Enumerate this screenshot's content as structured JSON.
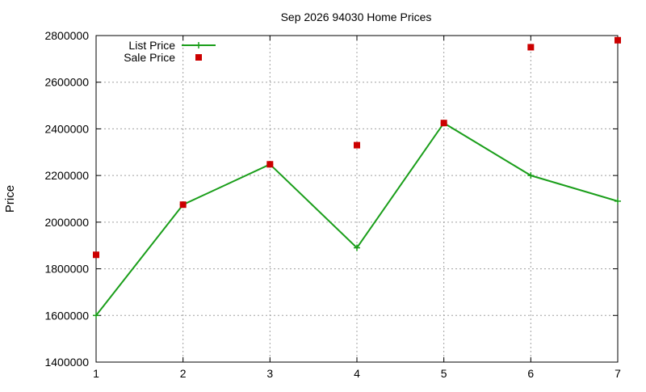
{
  "chart_data": {
    "type": "line",
    "title": "Sep 2026 94030 Home Prices",
    "xlabel": "",
    "ylabel": "Price",
    "xlim": [
      1,
      7
    ],
    "ylim": [
      1400000,
      2800000
    ],
    "x_ticks": [
      "1",
      "2",
      "3",
      "4",
      "5",
      "6",
      "7"
    ],
    "y_ticks": [
      "1400000",
      "1600000",
      "1800000",
      "2000000",
      "2200000",
      "2400000",
      "2600000",
      "2800000"
    ],
    "grid": true,
    "legend_position": "top-left",
    "series": [
      {
        "name": "List Price",
        "style": "line+cross",
        "color": "#1a9e1a",
        "x": [
          1,
          2,
          3,
          4,
          5,
          6,
          7
        ],
        "values": [
          1600000,
          2075000,
          2248000,
          1890000,
          2425000,
          2200000,
          2090000
        ]
      },
      {
        "name": "Sale Price",
        "style": "square-points",
        "color": "#cc0000",
        "x": [
          1,
          2,
          3,
          4,
          5,
          6,
          7
        ],
        "values": [
          1860000,
          2075000,
          2248000,
          2330000,
          2425000,
          2750000,
          2780000
        ]
      }
    ]
  }
}
